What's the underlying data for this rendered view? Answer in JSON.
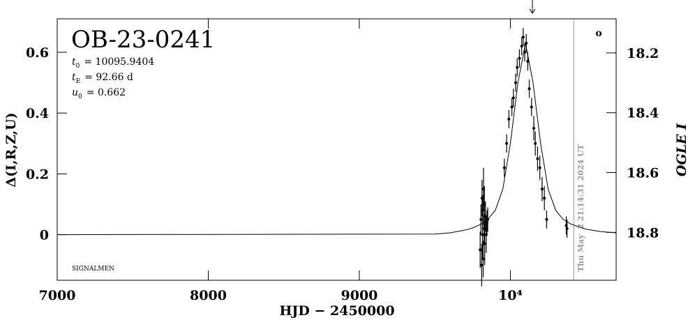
{
  "chart_data": {
    "type": "scatter",
    "title": "OB-23-0241",
    "parameters": [
      {
        "symbol": "t",
        "sub": "0",
        "text": "= 10095.9404"
      },
      {
        "symbol": "t",
        "sub": "E",
        "text": "= 92.66 d"
      },
      {
        "symbol": "u",
        "sub": "0",
        "text": "= 0.662"
      }
    ],
    "observer": "SIGNALMEN",
    "timestamp": "Thu May  2 21:14:31 2024 UT",
    "corner_mark": "o",
    "x_label": "HJD − 2450000",
    "y_label": "Δ(I,R,Z,U)",
    "y2_label": "OGLE I",
    "xlim": [
      7000,
      10700
    ],
    "xticks": [
      7000,
      8000,
      9000,
      {
        "value": 10000,
        "label": "10⁴"
      }
    ],
    "ylim": [
      -0.15,
      0.71
    ],
    "yticks": [
      0,
      0.2,
      0.4,
      0.6
    ],
    "y2lim": [
      18.96,
      18.086
    ],
    "y2ticks": [
      18.2,
      18.4,
      18.6,
      18.8
    ],
    "now_line": 10420,
    "model": {
      "color": "#000000",
      "x": [
        7000,
        9500,
        9600,
        9700,
        9750,
        9800,
        9850,
        9900,
        9950,
        10000,
        10050,
        10100,
        10150,
        10200,
        10250,
        10300,
        10350,
        10400,
        10500,
        10600,
        10700
      ],
      "values": [
        0,
        0.002,
        0.006,
        0.015,
        0.022,
        0.033,
        0.05,
        0.08,
        0.15,
        0.3,
        0.5,
        0.63,
        0.5,
        0.3,
        0.15,
        0.08,
        0.05,
        0.035,
        0.018,
        0.01,
        0.006
      ]
    },
    "series": [
      {
        "name": "OGLE I",
        "color": "#000000",
        "x": [
          9800,
          9805,
          9810,
          9812,
          9815,
          9818,
          9820,
          9822,
          9825,
          9828,
          9830,
          9835,
          9840,
          9845,
          9850,
          9960,
          9975,
          9990,
          10010,
          10020,
          10035,
          10045,
          10060,
          10075,
          10085,
          10095,
          10105,
          10115,
          10125,
          10140,
          10155,
          10165,
          10180,
          10195,
          10210,
          10225,
          10240,
          10370,
          10375
        ],
        "values": [
          -0.05,
          0.05,
          -0.1,
          0.12,
          0.0,
          0.08,
          -0.08,
          0.15,
          0.02,
          0.1,
          -0.03,
          0.06,
          0.0,
          0.04,
          0.05,
          0.22,
          0.3,
          0.38,
          0.42,
          0.45,
          0.5,
          0.55,
          0.58,
          0.62,
          0.65,
          0.6,
          0.63,
          0.57,
          0.48,
          0.42,
          0.35,
          0.3,
          0.25,
          0.22,
          0.15,
          0.12,
          0.05,
          0.03,
          0.02
        ],
        "errors": [
          0.06,
          0.05,
          0.07,
          0.06,
          0.08,
          0.05,
          0.06,
          0.07,
          0.05,
          0.06,
          0.07,
          0.05,
          0.06,
          0.04,
          0.04,
          0.03,
          0.03,
          0.03,
          0.03,
          0.03,
          0.03,
          0.03,
          0.03,
          0.03,
          0.03,
          0.03,
          0.03,
          0.03,
          0.03,
          0.03,
          0.04,
          0.04,
          0.04,
          0.04,
          0.04,
          0.04,
          0.03,
          0.03,
          0.03
        ]
      }
    ]
  }
}
